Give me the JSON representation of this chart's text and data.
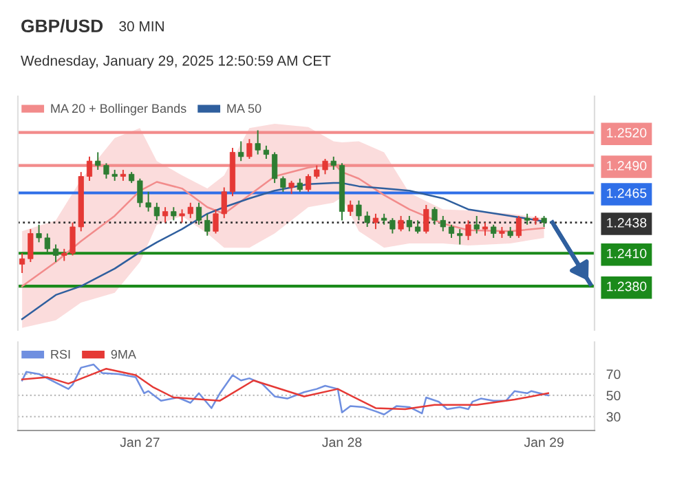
{
  "chart_data": [
    {
      "type": "candlestick",
      "title": "GBP/USD",
      "subtitle": "30 MIN",
      "annotations": [
        "Wednesday, January 29, 2025 12:50:59 AM CET"
      ],
      "x": [
        "2025-01-26T10:00",
        "2025-01-26T11:00",
        "2025-01-26T12:00",
        "2025-01-26T13:00",
        "2025-01-26T14:00",
        "2025-01-26T15:00",
        "2025-01-26T16:00",
        "2025-01-26T17:00",
        "2025-01-26T18:00",
        "2025-01-26T19:00",
        "2025-01-26T20:00",
        "2025-01-26T21:00",
        "2025-01-26T22:00",
        "2025-01-26T23:00",
        "2025-01-27T00:00",
        "2025-01-27T01:00",
        "2025-01-27T02:00",
        "2025-01-27T03:00",
        "2025-01-27T04:00",
        "2025-01-27T05:00",
        "2025-01-27T06:00",
        "2025-01-27T07:00",
        "2025-01-27T08:00",
        "2025-01-27T09:00",
        "2025-01-27T10:00",
        "2025-01-27T11:00",
        "2025-01-27T12:00",
        "2025-01-27T13:00",
        "2025-01-27T14:00",
        "2025-01-27T15:00",
        "2025-01-27T16:00",
        "2025-01-27T17:00",
        "2025-01-27T18:00",
        "2025-01-27T19:00",
        "2025-01-27T20:00",
        "2025-01-27T21:00",
        "2025-01-27T22:00",
        "2025-01-27T23:00",
        "2025-01-28T00:00",
        "2025-01-28T01:00",
        "2025-01-28T02:00",
        "2025-01-28T03:00",
        "2025-01-28T04:00",
        "2025-01-28T05:00",
        "2025-01-28T06:00",
        "2025-01-28T07:00",
        "2025-01-28T08:00",
        "2025-01-28T09:00",
        "2025-01-28T10:00",
        "2025-01-28T11:00",
        "2025-01-28T12:00",
        "2025-01-28T13:00",
        "2025-01-28T14:00",
        "2025-01-28T15:00",
        "2025-01-28T16:00",
        "2025-01-28T17:00",
        "2025-01-28T18:00",
        "2025-01-28T19:00",
        "2025-01-28T20:00",
        "2025-01-28T21:00",
        "2025-01-28T22:00",
        "2025-01-28T23:00",
        "2025-01-29T00:00"
      ],
      "ohlc": [
        [
          1.24,
          1.241,
          1.2392,
          1.2405
        ],
        [
          1.2405,
          1.2432,
          1.2402,
          1.2428
        ],
        [
          1.2428,
          1.2436,
          1.242,
          1.2424
        ],
        [
          1.2424,
          1.2428,
          1.241,
          1.2414
        ],
        [
          1.2414,
          1.2418,
          1.2402,
          1.2408
        ],
        [
          1.2408,
          1.2414,
          1.2403,
          1.241
        ],
        [
          1.241,
          1.2438,
          1.2408,
          1.2434
        ],
        [
          1.2434,
          1.2484,
          1.243,
          1.248
        ],
        [
          1.248,
          1.2498,
          1.2476,
          1.2494
        ],
        [
          1.2494,
          1.2502,
          1.2486,
          1.249
        ],
        [
          1.249,
          1.2492,
          1.2478,
          1.2482
        ],
        [
          1.2482,
          1.2486,
          1.2476,
          1.248
        ],
        [
          1.248,
          1.2486,
          1.2476,
          1.2482
        ],
        [
          1.2482,
          1.2484,
          1.2474,
          1.2476
        ],
        [
          1.2476,
          1.2478,
          1.2452,
          1.2456
        ],
        [
          1.2456,
          1.2466,
          1.2448,
          1.2452
        ],
        [
          1.2452,
          1.2456,
          1.244,
          1.2444
        ],
        [
          1.2444,
          1.2452,
          1.2438,
          1.2448
        ],
        [
          1.2448,
          1.2452,
          1.244,
          1.2444
        ],
        [
          1.2444,
          1.245,
          1.2438,
          1.2446
        ],
        [
          1.2446,
          1.2456,
          1.2442,
          1.2452
        ],
        [
          1.2452,
          1.2456,
          1.2436,
          1.244
        ],
        [
          1.244,
          1.2446,
          1.2426,
          1.243
        ],
        [
          1.243,
          1.245,
          1.2428,
          1.2446
        ],
        [
          1.2446,
          1.247,
          1.2442,
          1.2466
        ],
        [
          1.2466,
          1.2506,
          1.2462,
          1.2502
        ],
        [
          1.2502,
          1.2512,
          1.2494,
          1.2498
        ],
        [
          1.2498,
          1.2514,
          1.2496,
          1.251
        ],
        [
          1.251,
          1.2522,
          1.25,
          1.2504
        ],
        [
          1.2504,
          1.2508,
          1.2496,
          1.25
        ],
        [
          1.25,
          1.2502,
          1.2474,
          1.2478
        ],
        [
          1.2478,
          1.248,
          1.2466,
          1.247
        ],
        [
          1.247,
          1.2476,
          1.2464,
          1.2474
        ],
        [
          1.2474,
          1.2478,
          1.2466,
          1.2468
        ],
        [
          1.2468,
          1.2482,
          1.2466,
          1.248
        ],
        [
          1.248,
          1.249,
          1.2478,
          1.2486
        ],
        [
          1.2486,
          1.2496,
          1.2482,
          1.2494
        ],
        [
          1.2494,
          1.2498,
          1.2486,
          1.249
        ],
        [
          1.249,
          1.2492,
          1.244,
          1.2448
        ],
        [
          1.2448,
          1.2458,
          1.2444,
          1.2454
        ],
        [
          1.2454,
          1.2458,
          1.244,
          1.2444
        ],
        [
          1.2444,
          1.2448,
          1.2434,
          1.2438
        ],
        [
          1.2438,
          1.2446,
          1.2432,
          1.2442
        ],
        [
          1.2442,
          1.2446,
          1.2436,
          1.244
        ],
        [
          1.244,
          1.2442,
          1.2428,
          1.2432
        ],
        [
          1.2432,
          1.2444,
          1.243,
          1.244
        ],
        [
          1.244,
          1.2444,
          1.243,
          1.2434
        ],
        [
          1.2434,
          1.244,
          1.2428,
          1.243
        ],
        [
          1.243,
          1.2454,
          1.2428,
          1.245
        ],
        [
          1.245,
          1.2452,
          1.2436,
          1.244
        ],
        [
          1.244,
          1.2444,
          1.243,
          1.2434
        ],
        [
          1.2434,
          1.2436,
          1.2424,
          1.2428
        ],
        [
          1.2428,
          1.2432,
          1.2418,
          1.2426
        ],
        [
          1.2426,
          1.244,
          1.2422,
          1.2436
        ],
        [
          1.2436,
          1.2444,
          1.2428,
          1.2432
        ],
        [
          1.2432,
          1.2438,
          1.2426,
          1.2434
        ],
        [
          1.2434,
          1.2436,
          1.2424,
          1.2428
        ],
        [
          1.2428,
          1.2434,
          1.2424,
          1.243
        ],
        [
          1.243,
          1.2434,
          1.2424,
          1.2426
        ],
        [
          1.2426,
          1.2444,
          1.2424,
          1.2442
        ],
        [
          1.2442,
          1.2446,
          1.2436,
          1.244
        ],
        [
          1.244,
          1.2444,
          1.2436,
          1.2442
        ],
        [
          1.2442,
          1.2444,
          1.2434,
          1.2438
        ]
      ],
      "colors": [
        "#e53935",
        "#e53935",
        "#2e7d32",
        "#2e7d32",
        "#2e7d32",
        "#e53935",
        "#e53935",
        "#e53935",
        "#e53935",
        "#2e7d32",
        "#2e7d32",
        "#2e7d32",
        "#e53935",
        "#2e7d32",
        "#2e7d32",
        "#2e7d32",
        "#2e7d32",
        "#e53935",
        "#2e7d32",
        "#e53935",
        "#e53935",
        "#2e7d32",
        "#2e7d32",
        "#e53935",
        "#e53935",
        "#e53935",
        "#2e7d32",
        "#e53935",
        "#2e7d32",
        "#2e7d32",
        "#2e7d32",
        "#2e7d32",
        "#e53935",
        "#2e7d32",
        "#e53935",
        "#e53935",
        "#e53935",
        "#2e7d32",
        "#2e7d32",
        "#e53935",
        "#2e7d32",
        "#2e7d32",
        "#e53935",
        "#2e7d32",
        "#2e7d32",
        "#e53935",
        "#2e7d32",
        "#2e7d32",
        "#e53935",
        "#2e7d32",
        "#2e7d32",
        "#2e7d32",
        "#2e7d32",
        "#e53935",
        "#2e7d32",
        "#e53935",
        "#2e7d32",
        "#e53935",
        "#2e7d32",
        "#e53935",
        "#2e7d32",
        "#e53935",
        "#2e7d32"
      ],
      "series": [
        {
          "type": "line",
          "name": "MA 20 + Bollinger Bands",
          "color": "#f28b8b",
          "x": [
            "2025-01-26T10:00",
            "2025-01-26T14:00",
            "2025-01-26T17:00",
            "2025-01-26T21:00",
            "2025-01-27T00:00",
            "2025-01-27T02:00",
            "2025-01-27T05:00",
            "2025-01-27T08:00",
            "2025-01-27T10:00",
            "2025-01-27T13:00",
            "2025-01-27T16:00",
            "2025-01-27T20:00",
            "2025-01-27T23:00",
            "2025-01-28T00:00",
            "2025-01-28T02:00",
            "2025-01-28T05:00",
            "2025-01-28T08:00",
            "2025-01-28T12:00",
            "2025-01-28T15:00",
            "2025-01-28T20:00",
            "2025-01-29T00:00"
          ],
          "values": [
            1.238,
            1.2402,
            1.2421,
            1.2444,
            1.2467,
            1.2475,
            1.2469,
            1.2452,
            1.2446,
            1.2463,
            1.248,
            1.2488,
            1.2492,
            1.2484,
            1.2478,
            1.2463,
            1.245,
            1.2437,
            1.2431,
            1.243,
            1.2433
          ],
          "upper": [
            1.243,
            1.244,
            1.2477,
            1.2515,
            1.2524,
            1.2494,
            1.2481,
            1.2469,
            1.2481,
            1.2524,
            1.2528,
            1.2525,
            1.2512,
            1.2511,
            1.2512,
            1.2502,
            1.2465,
            1.245,
            1.2449,
            1.2446,
            1.2442
          ],
          "lower": [
            1.2342,
            1.2349,
            1.2365,
            1.2374,
            1.2402,
            1.2436,
            1.2444,
            1.2428,
            1.2415,
            1.2415,
            1.2428,
            1.2452,
            1.2456,
            1.2461,
            1.243,
            1.2415,
            1.2419,
            1.2419,
            1.2417,
            1.2419,
            1.2424
          ]
        },
        {
          "type": "line",
          "name": "MA 50",
          "color": "#2f5f9e",
          "x": [
            "2025-01-26T10:00",
            "2025-01-26T14:00",
            "2025-01-26T17:00",
            "2025-01-26T21:00",
            "2025-01-27T00:00",
            "2025-01-27T02:00",
            "2025-01-27T05:00",
            "2025-01-27T08:00",
            "2025-01-27T10:00",
            "2025-01-27T13:00",
            "2025-01-27T16:00",
            "2025-01-27T20:00",
            "2025-01-27T23:00",
            "2025-01-28T00:00",
            "2025-01-28T02:00",
            "2025-01-28T05:00",
            "2025-01-28T08:00",
            "2025-01-28T12:00",
            "2025-01-28T15:00",
            "2025-01-28T20:00",
            "2025-01-29T00:00"
          ],
          "values": [
            1.235,
            1.2372,
            1.238,
            1.2396,
            1.2411,
            1.242,
            1.2432,
            1.2446,
            1.2452,
            1.246,
            1.2467,
            1.2473,
            1.2474,
            1.2474,
            1.2471,
            1.2469,
            1.2467,
            1.246,
            1.245,
            1.2444,
            1.2439
          ]
        },
        {
          "type": "line",
          "color": "#2f5f9e",
          "x": [
            "2025-01-29T01:00",
            "2025-01-29T05:30"
          ],
          "values": [
            1.2438,
            1.2382
          ]
        }
      ],
      "ref_lines": [
        {
          "axis": "y",
          "value": 1.252,
          "color": "#f28b8b"
        },
        {
          "axis": "y",
          "value": 1.249,
          "color": "#f28b8b"
        },
        {
          "axis": "y",
          "value": 1.2465,
          "color": "#2f6fe8"
        },
        {
          "axis": "y",
          "value": 1.2438,
          "color": "#333333",
          "line_style": "dotted"
        },
        {
          "axis": "y",
          "value": 1.241,
          "color": "#1b8a1b"
        },
        {
          "axis": "y",
          "value": 1.238,
          "color": "#1b8a1b"
        }
      ],
      "yticks": [
        {
          "value": 1.252,
          "label": "1.2520"
        },
        {
          "value": 1.249,
          "label": "1.2490"
        },
        {
          "value": 1.2465,
          "label": "1.2465"
        },
        {
          "value": 1.2438,
          "label": "1.2438"
        },
        {
          "value": 1.241,
          "label": "1.2410"
        },
        {
          "value": 1.238,
          "label": "1.2380"
        }
      ],
      "xlim": [
        "2025-01-26T09:30",
        "2025-01-29T06:00"
      ],
      "ylim": [
        1.234,
        1.2553
      ],
      "tick_labels": "y",
      "legend": "top left"
    },
    {
      "type": "line",
      "series": [
        {
          "name": "RSI",
          "color": "#6f8fe0",
          "x": [
            "2025-01-26T10:00",
            "2025-01-26T10:30",
            "2025-01-26T12:00",
            "2025-01-26T14:00",
            "2025-01-26T15:30",
            "2025-01-26T16:00",
            "2025-01-26T17:00",
            "2025-01-26T18:30",
            "2025-01-26T19:30",
            "2025-01-26T21:30",
            "2025-01-26T23:30",
            "2025-01-27T00:30",
            "2025-01-27T01:00",
            "2025-01-27T02:30",
            "2025-01-27T04:30",
            "2025-01-27T06:00",
            "2025-01-27T07:00",
            "2025-01-27T08:30",
            "2025-01-27T09:30",
            "2025-01-27T11:00",
            "2025-01-27T12:00",
            "2025-01-27T13:00",
            "2025-01-27T14:30",
            "2025-01-27T16:00",
            "2025-01-27T17:30",
            "2025-01-27T19:30",
            "2025-01-27T21:00",
            "2025-01-27T22:00",
            "2025-01-27T23:30",
            "2025-01-28T00:00",
            "2025-01-28T01:00",
            "2025-01-28T02:30",
            "2025-01-28T04:00",
            "2025-01-28T05:00",
            "2025-01-28T06:30",
            "2025-01-28T08:00",
            "2025-01-28T09:30",
            "2025-01-28T10:00",
            "2025-01-28T11:30",
            "2025-01-28T12:30",
            "2025-01-28T14:00",
            "2025-01-28T15:00",
            "2025-01-28T15:30",
            "2025-01-28T16:30",
            "2025-01-28T18:00",
            "2025-01-28T19:30",
            "2025-01-28T20:30",
            "2025-01-28T22:00",
            "2025-01-28T22:30",
            "2025-01-29T00:30"
          ],
          "values": [
            64,
            72,
            70,
            62,
            56,
            60,
            76,
            79,
            71,
            70,
            67,
            52,
            54,
            45,
            48,
            43,
            52,
            38,
            52,
            69,
            64,
            66,
            61,
            49,
            47,
            53,
            56,
            59,
            56,
            34,
            40,
            39,
            35,
            32,
            40,
            39,
            33,
            48,
            44,
            37,
            39,
            37,
            44,
            47,
            45,
            45,
            54,
            52,
            54,
            50
          ]
        },
        {
          "name": "9MA",
          "color": "#e53935",
          "x": [
            "2025-01-26T10:00",
            "2025-01-26T13:00",
            "2025-01-26T15:30",
            "2025-01-26T20:00",
            "2025-01-26T23:30",
            "2025-01-27T01:30",
            "2025-01-27T04:00",
            "2025-01-27T09:30",
            "2025-01-27T13:30",
            "2025-01-27T19:30",
            "2025-01-27T23:30",
            "2025-01-28T04:00",
            "2025-01-28T07:30",
            "2025-01-28T11:00",
            "2025-01-28T16:00",
            "2025-01-28T20:30",
            "2025-01-29T00:30"
          ],
          "values": [
            65,
            67,
            61,
            75,
            69,
            58,
            48,
            45,
            64,
            49,
            56,
            38,
            37,
            41,
            41,
            46,
            52
          ]
        }
      ],
      "xlim": [
        "2025-01-26T09:30",
        "2025-01-29T06:00"
      ],
      "ylim": [
        17,
        100
      ],
      "yticks": [
        30,
        50,
        70
      ],
      "xticks": [
        {
          "value": "2025-01-27",
          "label": "Jan 27"
        },
        {
          "value": "2025-01-28",
          "label": "Jan 28"
        },
        {
          "value": "2025-01-29",
          "label": "Jan 29"
        }
      ],
      "grid": "y",
      "legend": "top left"
    }
  ]
}
